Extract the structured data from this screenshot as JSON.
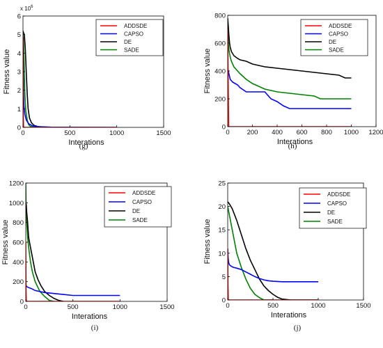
{
  "colors": {
    "ADDSDE": "#ff0000",
    "CAPSO": "#0000ff",
    "DE": "#000000",
    "SADE": "#008000"
  },
  "chart_data": [
    {
      "panel": "(g)",
      "type": "line",
      "xlabel": "Interations",
      "ylabel": "Fitness value",
      "xlim": [
        0,
        1500
      ],
      "xticks": [
        0,
        500,
        1000,
        1500
      ],
      "ylim": [
        0,
        6000000
      ],
      "yticks": [
        0,
        1,
        2,
        3,
        4,
        5,
        6
      ],
      "y_multiplier_label": "x 10^6",
      "y_multiplier": 1000000,
      "legend": [
        "ADDSDE",
        "CAPSO",
        "DE",
        "SADE"
      ],
      "series": [
        {
          "name": "ADDSDE",
          "x": [
            0,
            3,
            6,
            1000
          ],
          "y": [
            4900000,
            700000,
            0,
            0
          ]
        },
        {
          "name": "CAPSO",
          "x": [
            0,
            5,
            10,
            20,
            35,
            60,
            100,
            150,
            300,
            1000
          ],
          "y": [
            4800000,
            2000000,
            1200000,
            700000,
            400000,
            200000,
            90000,
            40000,
            10000,
            0
          ]
        },
        {
          "name": "DE",
          "x": [
            0,
            5,
            15,
            25,
            35,
            45,
            55,
            70,
            90,
            120,
            160,
            220,
            300
          ],
          "y": [
            5200000,
            5100000,
            5000000,
            4200000,
            3000000,
            1800000,
            1000000,
            500000,
            250000,
            100000,
            40000,
            10000,
            0
          ]
        },
        {
          "name": "SADE",
          "x": [
            0,
            5,
            10,
            15,
            20,
            30,
            45,
            60,
            80,
            120,
            180
          ],
          "y": [
            5000000,
            4800000,
            4000000,
            2800000,
            1800000,
            900000,
            400000,
            150000,
            50000,
            10000,
            0
          ]
        }
      ]
    },
    {
      "panel": "(h)",
      "type": "line",
      "xlabel": "Interations",
      "ylabel": "Fitness value",
      "xlim": [
        0,
        1200
      ],
      "xticks": [
        0,
        200,
        400,
        600,
        800,
        1000,
        1200
      ],
      "ylim": [
        0,
        800
      ],
      "yticks": [
        0,
        200,
        400,
        600,
        800
      ],
      "legend": [
        "ADDSDE",
        "CAPSO",
        "DE",
        "SADE"
      ],
      "series": [
        {
          "name": "ADDSDE",
          "x": [
            0,
            4,
            8,
            1000
          ],
          "y": [
            700,
            300,
            0,
            0
          ]
        },
        {
          "name": "CAPSO",
          "x": [
            0,
            5,
            10,
            20,
            40,
            60,
            80,
            100,
            150,
            200,
            300,
            350,
            400,
            450,
            500,
            1000
          ],
          "y": [
            420,
            400,
            380,
            340,
            320,
            310,
            300,
            280,
            250,
            250,
            250,
            200,
            180,
            150,
            130,
            130
          ]
        },
        {
          "name": "DE",
          "x": [
            0,
            5,
            10,
            15,
            20,
            30,
            50,
            80,
            100,
            150,
            200,
            300,
            400,
            500,
            600,
            700,
            800,
            900,
            950,
            1000
          ],
          "y": [
            780,
            720,
            650,
            600,
            570,
            540,
            510,
            490,
            480,
            470,
            450,
            430,
            420,
            410,
            400,
            390,
            380,
            370,
            350,
            350
          ]
        },
        {
          "name": "SADE",
          "x": [
            0,
            5,
            10,
            20,
            30,
            50,
            80,
            100,
            150,
            200,
            250,
            300,
            400,
            500,
            600,
            700,
            750,
            1000
          ],
          "y": [
            720,
            600,
            550,
            500,
            470,
            430,
            400,
            380,
            340,
            310,
            290,
            270,
            250,
            240,
            230,
            220,
            200,
            200
          ]
        }
      ]
    },
    {
      "panel": "(i)",
      "type": "line",
      "xlabel": "Interations",
      "ylabel": "Fitness value",
      "xlim": [
        0,
        1500
      ],
      "xticks": [
        0,
        500,
        1000,
        1500
      ],
      "ylim": [
        0,
        1200
      ],
      "yticks": [
        0,
        200,
        400,
        600,
        800,
        1000,
        1200
      ],
      "legend": [
        "ADDSDE",
        "CAPSO",
        "DE",
        "SADE"
      ],
      "series": [
        {
          "name": "ADDSDE",
          "x": [
            0,
            3,
            6,
            1000
          ],
          "y": [
            600,
            100,
            0,
            0
          ]
        },
        {
          "name": "CAPSO",
          "x": [
            0,
            5,
            10,
            30,
            60,
            100,
            200,
            300,
            400,
            500,
            1000
          ],
          "y": [
            170,
            160,
            150,
            140,
            130,
            110,
            90,
            80,
            70,
            60,
            60
          ]
        },
        {
          "name": "DE",
          "x": [
            0,
            5,
            10,
            20,
            30,
            40,
            60,
            80,
            100,
            130,
            160,
            200,
            250,
            300,
            350,
            400
          ],
          "y": [
            1000,
            980,
            900,
            800,
            650,
            600,
            500,
            400,
            300,
            220,
            160,
            100,
            60,
            30,
            10,
            0
          ]
        },
        {
          "name": "SADE",
          "x": [
            0,
            3,
            10,
            20,
            30,
            50,
            70,
            100,
            150,
            200,
            250,
            300
          ],
          "y": [
            1200,
            1000,
            800,
            650,
            550,
            400,
            300,
            200,
            100,
            50,
            10,
            0
          ]
        }
      ]
    },
    {
      "panel": "(j)",
      "type": "line",
      "xlabel": "Interations",
      "ylabel": "Fitness value",
      "xlim": [
        0,
        1500
      ],
      "xticks": [
        0,
        500,
        1000,
        1500
      ],
      "ylim": [
        0,
        25
      ],
      "yticks": [
        0,
        5,
        10,
        15,
        20,
        25
      ],
      "legend": [
        "ADDSDE",
        "CAPSO",
        "DE",
        "SADE"
      ],
      "series": [
        {
          "name": "ADDSDE",
          "x": [
            0,
            3,
            6,
            1000
          ],
          "y": [
            11,
            3,
            0,
            0
          ]
        },
        {
          "name": "CAPSO",
          "x": [
            0,
            5,
            10,
            20,
            40,
            60,
            100,
            150,
            200,
            250,
            300,
            350,
            400,
            450,
            500,
            600,
            700,
            1000
          ],
          "y": [
            11,
            9,
            8,
            7.5,
            7.2,
            7,
            6.8,
            6.5,
            6,
            5.5,
            5,
            4.6,
            4.3,
            4.1,
            4,
            3.9,
            3.9,
            3.9
          ]
        },
        {
          "name": "DE",
          "x": [
            0,
            20,
            50,
            80,
            100,
            150,
            200,
            250,
            300,
            350,
            400,
            450,
            500,
            550,
            600,
            700,
            1000
          ],
          "y": [
            21,
            20.5,
            19.5,
            18,
            17,
            14,
            11,
            8.5,
            6.5,
            4.5,
            3,
            2,
            1.2,
            0.6,
            0.2,
            0,
            0
          ]
        },
        {
          "name": "SADE",
          "x": [
            0,
            20,
            50,
            80,
            100,
            150,
            200,
            250,
            300,
            350,
            400,
            500
          ],
          "y": [
            20,
            18,
            15,
            12,
            10,
            7,
            4.5,
            2.5,
            1.2,
            0.5,
            0,
            0
          ]
        }
      ]
    }
  ]
}
